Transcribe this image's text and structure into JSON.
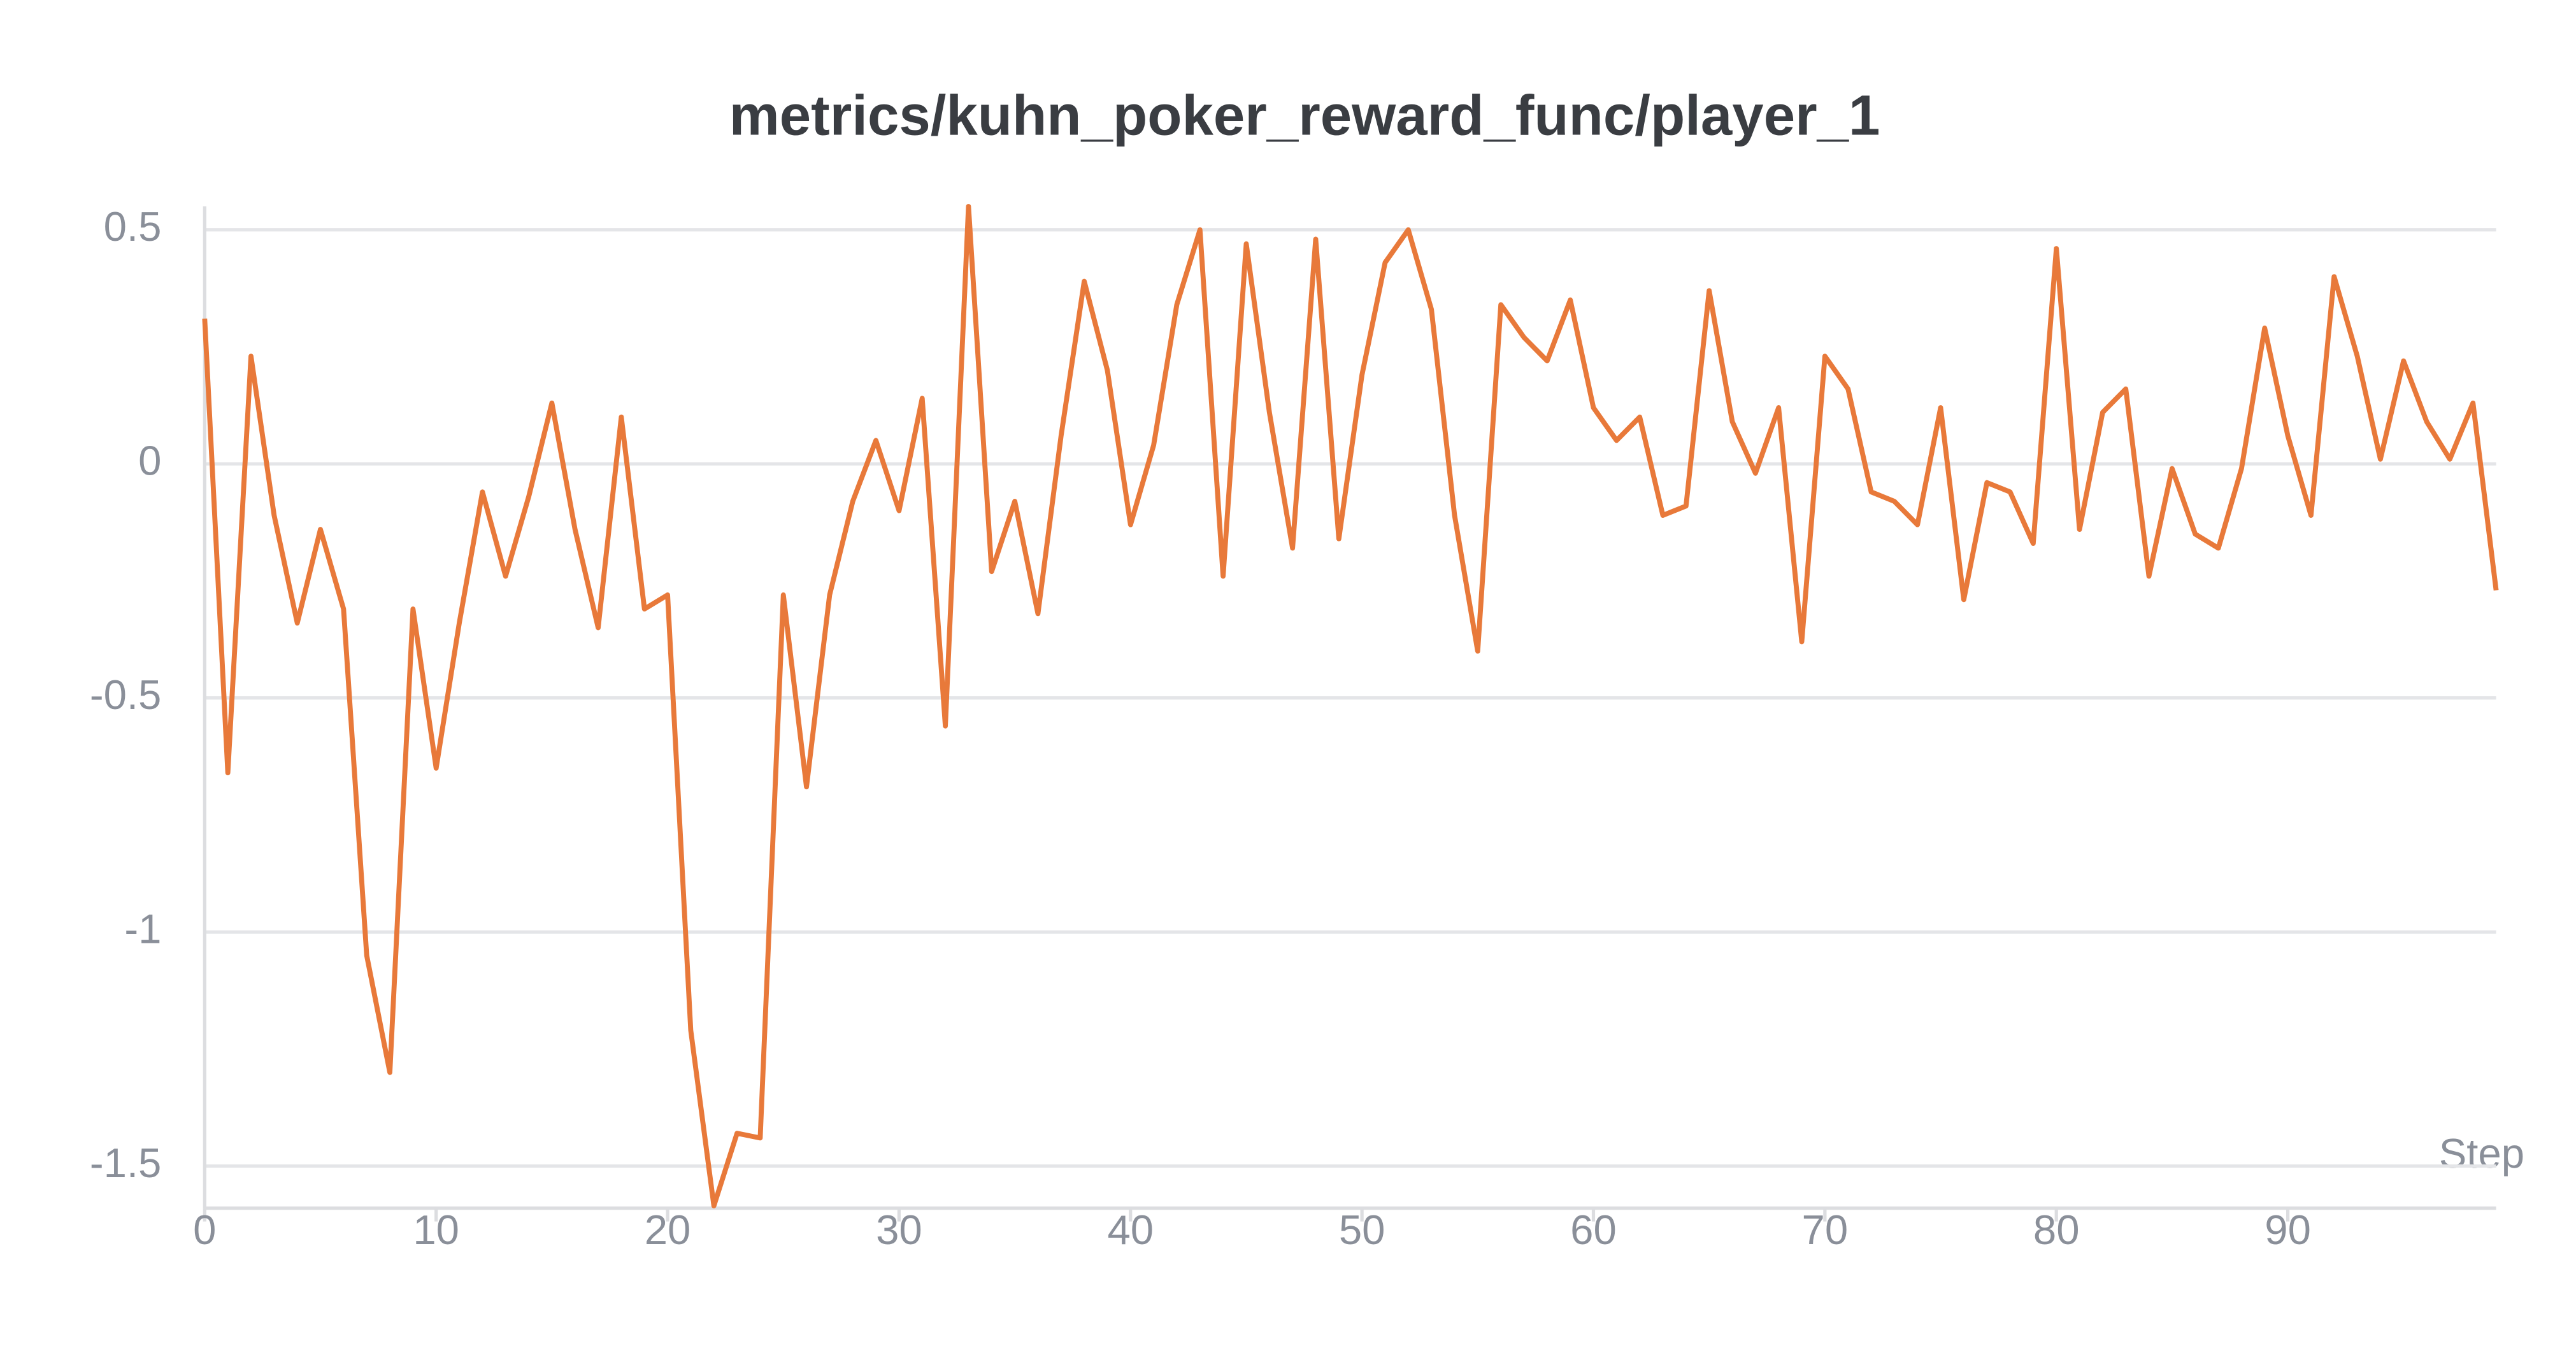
{
  "chart_data": {
    "type": "line",
    "title": "metrics/kuhn_poker_reward_func/player_1",
    "x_label": "Step",
    "color": "#e8793a",
    "x": [
      0,
      1,
      2,
      3,
      4,
      5,
      6,
      7,
      8,
      9,
      10,
      11,
      12,
      13,
      14,
      15,
      16,
      17,
      18,
      19,
      20,
      21,
      22,
      23,
      24,
      25,
      26,
      27,
      28,
      29,
      30,
      31,
      32,
      33,
      34,
      35,
      36,
      37,
      38,
      39,
      40,
      41,
      42,
      43,
      44,
      45,
      46,
      47,
      48,
      49,
      50,
      51,
      52,
      53,
      54,
      55,
      56,
      57,
      58,
      59,
      60,
      61,
      62,
      63,
      64,
      65,
      66,
      67,
      68,
      69,
      70,
      71,
      72,
      73,
      74,
      75,
      76,
      77,
      78,
      79,
      80,
      81,
      82,
      83,
      84,
      85,
      86,
      87,
      88,
      89,
      90,
      91,
      92,
      93,
      94,
      95,
      96,
      97,
      98,
      99
    ],
    "values": [
      0.31,
      -0.66,
      0.23,
      -0.11,
      -0.34,
      -0.14,
      -0.31,
      -1.05,
      -1.3,
      -0.31,
      -0.65,
      -0.34,
      -0.06,
      -0.24,
      -0.07,
      0.13,
      -0.14,
      -0.35,
      0.1,
      -0.31,
      -0.28,
      -1.21,
      -1.585,
      -1.43,
      -1.44,
      -0.28,
      -0.69,
      -0.28,
      -0.08,
      0.05,
      -0.1,
      0.14,
      -0.56,
      0.55,
      -0.23,
      -0.08,
      -0.32,
      0.06,
      0.39,
      0.2,
      -0.13,
      0.04,
      0.34,
      0.5,
      -0.24,
      0.47,
      0.11,
      -0.18,
      0.48,
      -0.16,
      0.19,
      0.43,
      0.5,
      0.33,
      -0.11,
      -0.4,
      0.34,
      0.27,
      0.22,
      0.35,
      0.12,
      0.05,
      0.1,
      -0.11,
      -0.09,
      0.37,
      0.09,
      -0.02,
      0.12,
      -0.38,
      0.23,
      0.16,
      -0.06,
      -0.08,
      -0.13,
      0.12,
      -0.29,
      -0.04,
      -0.06,
      -0.17,
      0.46,
      -0.14,
      0.11,
      0.16,
      -0.24,
      -0.01,
      -0.15,
      -0.18,
      -0.01,
      0.29,
      0.06,
      -0.11,
      0.4,
      0.23,
      0.01,
      0.22,
      0.09,
      0.01,
      0.13,
      -0.27
    ],
    "xlim": [
      0,
      99
    ],
    "xticks": [
      0,
      10,
      20,
      30,
      40,
      50,
      60,
      70,
      80,
      90
    ],
    "ylim": [
      -1.59,
      0.55
    ],
    "yticks": [
      0.5,
      0,
      -0.5,
      -1,
      -1.5
    ],
    "grid": true
  }
}
